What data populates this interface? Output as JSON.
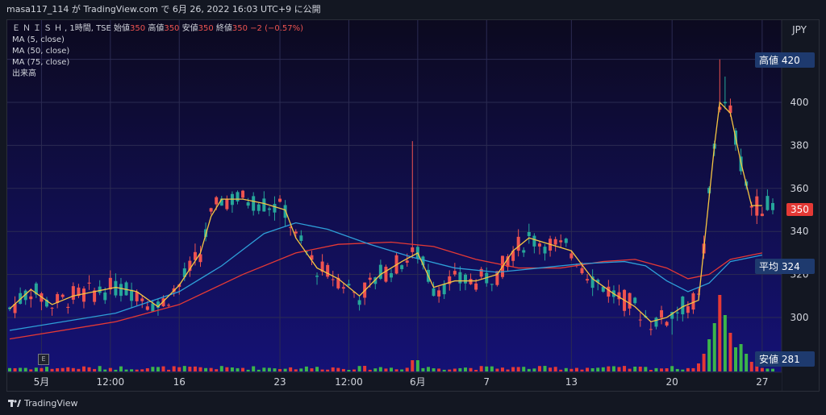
{
  "header": {
    "user": "masa117_114",
    "ga": "が",
    "site": "TradingView.com",
    "de": "で",
    "date": "6月 26, 2022 16:03 UTC+9",
    "publish": "に公開"
  },
  "legend": {
    "symbol": "ＥＮＩＳＨ",
    "timeframe": ", 1時間, TSE",
    "open_label": "始値",
    "open": "350",
    "high_label": "高値",
    "high": "350",
    "low_label": "安値",
    "low": "350",
    "close_label": "終値",
    "close": "350",
    "change": "−2 (−0.57%)",
    "ma5": "MA (5, close)",
    "ma50": "MA (50, close)",
    "ma75": "MA (75, close)",
    "volume": "出来高"
  },
  "footer": {
    "brand": "TradingView"
  },
  "colors": {
    "up": "#26a69a",
    "down": "#ef5350",
    "ma5": "#f5c542",
    "ma50": "#2e9fd8",
    "ma75": "#e53935",
    "vol_up": "#3bb54a",
    "vol_down": "#e53935"
  },
  "icons": {
    "event": "E",
    "logo": "tradingview-logo-icon"
  },
  "chart_data": {
    "type": "candlestick",
    "currency": "JPY",
    "ylim": [
      276,
      424
    ],
    "y_ticks": [
      300,
      320,
      340,
      360,
      380,
      400,
      420
    ],
    "x_ticks": [
      {
        "i": 6,
        "label": "5月"
      },
      {
        "i": 19,
        "label": "12:00"
      },
      {
        "i": 32,
        "label": "16"
      },
      {
        "i": 51,
        "label": "23"
      },
      {
        "i": 64,
        "label": "12:00"
      },
      {
        "i": 77,
        "label": "6月"
      },
      {
        "i": 90,
        "label": "7"
      },
      {
        "i": 106,
        "label": "13"
      },
      {
        "i": 125,
        "label": "20"
      },
      {
        "i": 142,
        "label": "27"
      }
    ],
    "price_labels": [
      {
        "label": "高値",
        "value": "420",
        "y": 420,
        "bg": "#1e3a6e"
      },
      {
        "label": "",
        "value": "350",
        "y": 350,
        "bg": "#e53935"
      },
      {
        "label": "平均",
        "value": "324",
        "y": 324,
        "bg": "#1e3a6e"
      },
      {
        "label": "安値",
        "value": "281",
        "y": 281,
        "bg": "#1e3a6e"
      }
    ],
    "ma5": [
      [
        0,
        304
      ],
      [
        4,
        313
      ],
      [
        8,
        306
      ],
      [
        12,
        310
      ],
      [
        16,
        312
      ],
      [
        20,
        314
      ],
      [
        24,
        312
      ],
      [
        28,
        305
      ],
      [
        32,
        315
      ],
      [
        36,
        330
      ],
      [
        38,
        347
      ],
      [
        40,
        355
      ],
      [
        44,
        355
      ],
      [
        48,
        353
      ],
      [
        52,
        350
      ],
      [
        54,
        337
      ],
      [
        56,
        330
      ],
      [
        58,
        323
      ],
      [
        62,
        318
      ],
      [
        66,
        310
      ],
      [
        70,
        320
      ],
      [
        74,
        326
      ],
      [
        77,
        330
      ],
      [
        80,
        314
      ],
      [
        84,
        317
      ],
      [
        88,
        317
      ],
      [
        92,
        320
      ],
      [
        95,
        331
      ],
      [
        98,
        337
      ],
      [
        102,
        334
      ],
      [
        106,
        331
      ],
      [
        110,
        318
      ],
      [
        114,
        311
      ],
      [
        118,
        305
      ],
      [
        121,
        298
      ],
      [
        124,
        300
      ],
      [
        127,
        305
      ],
      [
        130,
        308
      ],
      [
        133,
        380
      ],
      [
        134,
        400
      ],
      [
        136,
        395
      ],
      [
        138,
        372
      ],
      [
        140,
        352
      ],
      [
        142,
        352
      ]
    ],
    "ma50": [
      [
        0,
        294
      ],
      [
        20,
        302
      ],
      [
        32,
        312
      ],
      [
        40,
        324
      ],
      [
        48,
        339
      ],
      [
        54,
        344
      ],
      [
        60,
        341
      ],
      [
        68,
        334
      ],
      [
        76,
        328
      ],
      [
        84,
        323
      ],
      [
        92,
        321
      ],
      [
        100,
        323
      ],
      [
        108,
        325
      ],
      [
        116,
        326
      ],
      [
        120,
        324
      ],
      [
        124,
        317
      ],
      [
        128,
        312
      ],
      [
        132,
        316
      ],
      [
        136,
        326
      ],
      [
        140,
        328
      ],
      [
        142,
        329
      ]
    ],
    "ma75": [
      [
        0,
        290
      ],
      [
        20,
        298
      ],
      [
        32,
        306
      ],
      [
        44,
        320
      ],
      [
        54,
        330
      ],
      [
        62,
        334
      ],
      [
        72,
        335
      ],
      [
        80,
        333
      ],
      [
        88,
        327
      ],
      [
        96,
        323
      ],
      [
        104,
        323
      ],
      [
        112,
        326
      ],
      [
        118,
        327
      ],
      [
        124,
        323
      ],
      [
        128,
        318
      ],
      [
        132,
        320
      ],
      [
        136,
        327
      ],
      [
        140,
        329
      ],
      [
        142,
        330
      ]
    ]
  }
}
